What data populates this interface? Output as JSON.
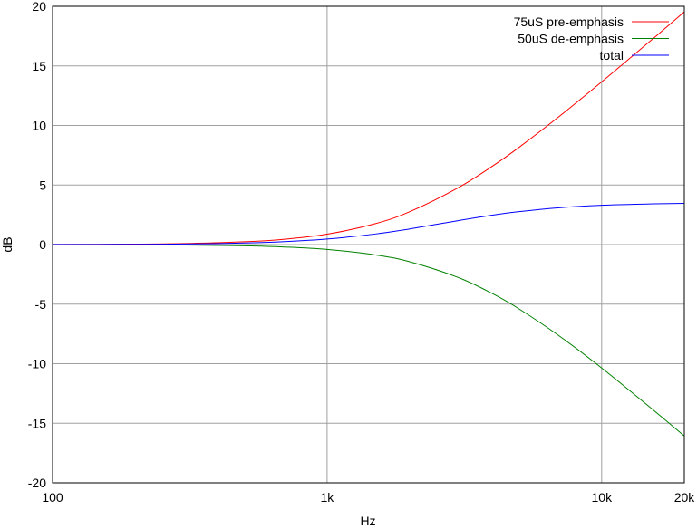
{
  "chart_data": {
    "type": "line",
    "title": "",
    "xlabel": "Hz",
    "ylabel": "dB",
    "xscale": "log",
    "xlim": [
      100,
      20000
    ],
    "ylim": [
      -20,
      20
    ],
    "grid": true,
    "legend_position": "top-right",
    "x_ticks": [
      {
        "value": 100,
        "label": "100"
      },
      {
        "value": 1000,
        "label": "1k"
      },
      {
        "value": 10000,
        "label": "10k"
      },
      {
        "value": 20000,
        "label": "20k"
      }
    ],
    "y_ticks": [
      {
        "value": -20,
        "label": "-20"
      },
      {
        "value": -15,
        "label": "-15"
      },
      {
        "value": -10,
        "label": "-10"
      },
      {
        "value": -5,
        "label": "-5"
      },
      {
        "value": 0,
        "label": "0"
      },
      {
        "value": 5,
        "label": "5"
      },
      {
        "value": 10,
        "label": "10"
      },
      {
        "value": 15,
        "label": "15"
      },
      {
        "value": 20,
        "label": "20"
      }
    ],
    "x": [
      100,
      200,
      300,
      500,
      700,
      1000,
      1500,
      2000,
      3000,
      4000,
      5000,
      7000,
      10000,
      15000,
      20000
    ],
    "series": [
      {
        "name": "75uS pre-emphasis",
        "color": "#ff0000",
        "values": [
          0.0096,
          0.038,
          0.086,
          0.235,
          0.449,
          0.871,
          1.76,
          2.76,
          4.77,
          6.58,
          8.16,
          10.75,
          13.66,
          17.07,
          19.53
        ]
      },
      {
        "name": "50uS de-emphasis",
        "color": "#008000",
        "values": [
          -0.0043,
          -0.017,
          -0.038,
          -0.106,
          -0.205,
          -0.409,
          -0.871,
          -1.445,
          -2.76,
          -4.115,
          -5.4,
          -7.66,
          -10.36,
          -13.66,
          -16.07
        ]
      },
      {
        "name": "total",
        "color": "#0000ff",
        "values": [
          0.0053,
          0.021,
          0.048,
          0.129,
          0.244,
          0.462,
          0.889,
          1.315,
          2.009,
          2.468,
          2.763,
          3.09,
          3.3,
          3.41,
          3.46
        ]
      }
    ]
  }
}
